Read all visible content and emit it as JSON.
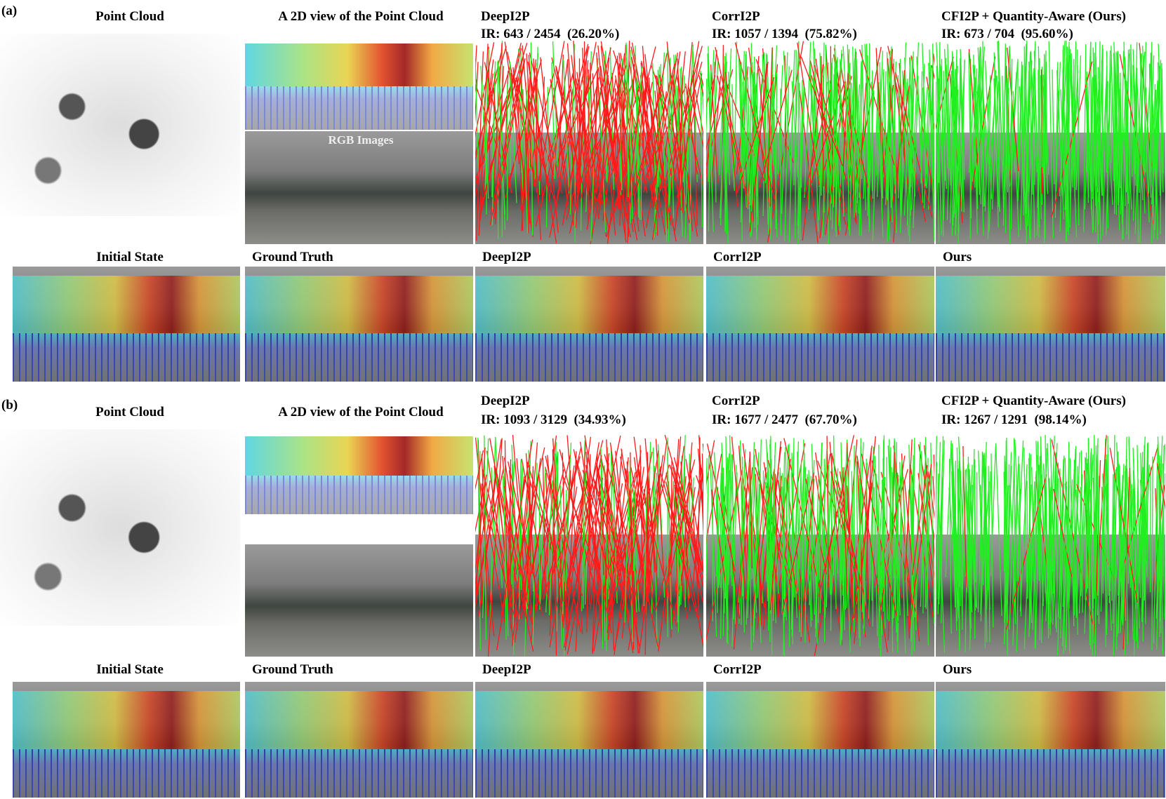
{
  "panels": [
    {
      "label": "(a)",
      "top_titles": [
        "Point Cloud",
        "A 2D view of the Point Cloud"
      ],
      "rgb_label": "RGB Images",
      "methods": [
        {
          "name": "DeepI2P",
          "ir": "IR: 643 / 2454  (26.20%)"
        },
        {
          "name": "CorrI2P",
          "ir": "IR: 1057 / 1394  (75.82%)"
        },
        {
          "name": "CFI2P + Quantity-Aware (Ours)",
          "ir": "IR: 673 / 704  (95.60%)"
        }
      ],
      "bottom_titles": [
        "Initial State",
        "Ground Truth",
        "DeepI2P",
        "CorrI2P",
        "Ours"
      ]
    },
    {
      "label": "(b)",
      "top_titles": [
        "Point Cloud",
        "A 2D view of the Point Cloud"
      ],
      "methods": [
        {
          "name": "DeepI2P",
          "ir": "IR: 1093 / 3129  (34.93%)"
        },
        {
          "name": "CorrI2P",
          "ir": "IR: 1677 / 2477  (67.70%)"
        },
        {
          "name": "CFI2P + Quantity-Aware (Ours)",
          "ir": "IR: 1267 / 1291  (98.14%)"
        }
      ],
      "bottom_titles": [
        "Initial State",
        "Ground Truth",
        "DeepI2P",
        "CorrI2P",
        "Ours"
      ]
    }
  ]
}
